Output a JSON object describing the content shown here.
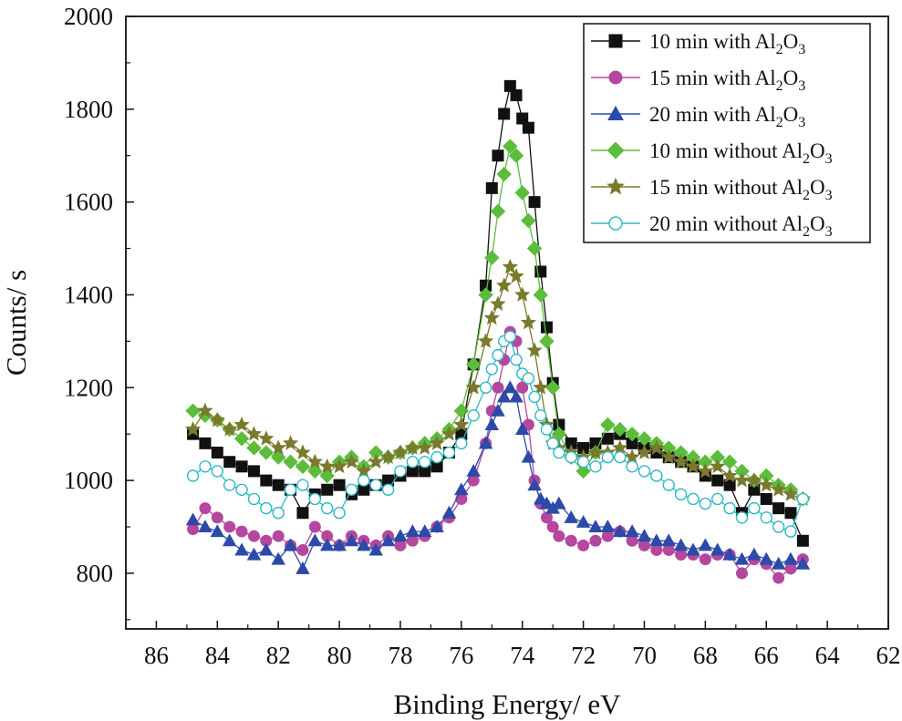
{
  "chart_data": {
    "type": "scatter",
    "xlabel": "Binding Energy/ eV",
    "ylabel": "Counts/ s",
    "xlim": [
      87,
      62
    ],
    "ylim": [
      680,
      2000
    ],
    "x_ticks": [
      86,
      84,
      82,
      80,
      78,
      76,
      74,
      72,
      70,
      68,
      66,
      64,
      62
    ],
    "y_ticks": [
      800,
      1000,
      1200,
      1400,
      1600,
      1800,
      2000
    ],
    "legend_position": "top-right",
    "series": [
      {
        "name": "10 min with Al",
        "sub": "2",
        "tail": "O",
        "sub2": "3",
        "color": "#111111",
        "marker": "square",
        "filled": true,
        "x": [
          84.8,
          84.4,
          84.0,
          83.6,
          83.2,
          82.8,
          82.4,
          82.0,
          81.6,
          81.2,
          80.8,
          80.4,
          80.0,
          79.6,
          79.2,
          78.8,
          78.4,
          78.0,
          77.6,
          77.2,
          76.8,
          76.4,
          76.0,
          75.6,
          75.2,
          75.0,
          74.8,
          74.6,
          74.4,
          74.2,
          74.0,
          73.8,
          73.6,
          73.4,
          73.2,
          73.0,
          72.8,
          72.4,
          72.0,
          71.6,
          71.2,
          70.8,
          70.4,
          70.0,
          69.6,
          69.2,
          68.8,
          68.4,
          68.0,
          67.6,
          67.2,
          66.8,
          66.4,
          66.0,
          65.6,
          65.2,
          64.8
        ],
        "y": [
          1100,
          1080,
          1060,
          1040,
          1030,
          1020,
          1000,
          990,
          980,
          930,
          970,
          980,
          990,
          970,
          980,
          990,
          1000,
          1010,
          1020,
          1020,
          1030,
          1060,
          1100,
          1250,
          1420,
          1630,
          1700,
          1790,
          1850,
          1830,
          1780,
          1760,
          1600,
          1450,
          1330,
          1210,
          1120,
          1080,
          1070,
          1080,
          1090,
          1100,
          1080,
          1070,
          1060,
          1050,
          1040,
          1030,
          1010,
          1000,
          990,
          930,
          980,
          960,
          940,
          930,
          870
        ]
      },
      {
        "name": "15 min with Al",
        "sub": "2",
        "tail": "O",
        "sub2": "3",
        "color": "#b5479e",
        "marker": "circle",
        "filled": true,
        "x": [
          84.8,
          84.4,
          84.0,
          83.6,
          83.2,
          82.8,
          82.4,
          82.0,
          81.6,
          81.2,
          80.8,
          80.4,
          80.0,
          79.6,
          79.2,
          78.8,
          78.4,
          78.0,
          77.6,
          77.2,
          76.8,
          76.4,
          76.0,
          75.6,
          75.2,
          75.0,
          74.8,
          74.6,
          74.4,
          74.2,
          74.0,
          73.8,
          73.6,
          73.4,
          73.2,
          73.0,
          72.8,
          72.4,
          72.0,
          71.6,
          71.2,
          70.8,
          70.4,
          70.0,
          69.6,
          69.2,
          68.8,
          68.4,
          68.0,
          67.6,
          67.2,
          66.8,
          66.4,
          66.0,
          65.6,
          65.2,
          64.8
        ],
        "y": [
          895,
          940,
          920,
          900,
          890,
          880,
          870,
          880,
          860,
          850,
          900,
          880,
          860,
          880,
          870,
          860,
          880,
          860,
          870,
          880,
          900,
          920,
          960,
          1000,
          1080,
          1150,
          1200,
          1260,
          1320,
          1300,
          1200,
          1120,
          1000,
          950,
          920,
          900,
          880,
          870,
          860,
          870,
          880,
          890,
          870,
          860,
          850,
          850,
          840,
          840,
          830,
          840,
          840,
          800,
          830,
          820,
          790,
          810,
          830
        ]
      },
      {
        "name": "20 min with Al",
        "sub": "2",
        "tail": "O",
        "sub2": "3",
        "color": "#2d4aa8",
        "marker": "triangle",
        "filled": true,
        "x": [
          84.8,
          84.4,
          84.0,
          83.6,
          83.2,
          82.8,
          82.4,
          82.0,
          81.6,
          81.2,
          80.8,
          80.4,
          80.0,
          79.6,
          79.2,
          78.8,
          78.4,
          78.0,
          77.6,
          77.2,
          76.8,
          76.4,
          76.0,
          75.6,
          75.2,
          75.0,
          74.8,
          74.6,
          74.4,
          74.2,
          74.0,
          73.8,
          73.6,
          73.4,
          73.2,
          73.0,
          72.8,
          72.4,
          72.0,
          71.6,
          71.2,
          70.8,
          70.4,
          70.0,
          69.6,
          69.2,
          68.8,
          68.4,
          68.0,
          67.6,
          67.2,
          66.8,
          66.4,
          66.0,
          65.6,
          65.2,
          64.8
        ],
        "y": [
          915,
          900,
          890,
          870,
          850,
          840,
          850,
          830,
          860,
          810,
          870,
          860,
          860,
          870,
          860,
          850,
          870,
          880,
          890,
          890,
          900,
          930,
          980,
          1020,
          1080,
          1120,
          1150,
          1180,
          1200,
          1180,
          1110,
          1050,
          990,
          960,
          950,
          940,
          950,
          920,
          910,
          900,
          900,
          890,
          890,
          880,
          870,
          870,
          860,
          850,
          860,
          850,
          840,
          830,
          840,
          830,
          820,
          830,
          820
        ]
      },
      {
        "name": "10 min without Al",
        "sub": "2",
        "tail": "O",
        "sub2": "3",
        "color": "#5bbd3a",
        "marker": "diamond",
        "filled": true,
        "x": [
          84.8,
          84.4,
          84.0,
          83.6,
          83.2,
          82.8,
          82.4,
          82.0,
          81.6,
          81.2,
          80.8,
          80.4,
          80.0,
          79.6,
          79.2,
          78.8,
          78.4,
          78.0,
          77.6,
          77.2,
          76.8,
          76.4,
          76.0,
          75.6,
          75.2,
          75.0,
          74.8,
          74.6,
          74.4,
          74.2,
          74.0,
          73.8,
          73.6,
          73.4,
          73.2,
          73.0,
          72.8,
          72.4,
          72.0,
          71.6,
          71.2,
          70.8,
          70.4,
          70.0,
          69.6,
          69.2,
          68.8,
          68.4,
          68.0,
          67.6,
          67.2,
          66.8,
          66.4,
          66.0,
          65.6,
          65.2,
          64.8
        ],
        "y": [
          1150,
          1140,
          1130,
          1110,
          1090,
          1070,
          1060,
          1050,
          1040,
          1030,
          1020,
          1010,
          1040,
          1050,
          1030,
          1060,
          1050,
          1060,
          1070,
          1080,
          1090,
          1110,
          1150,
          1250,
          1400,
          1480,
          1580,
          1660,
          1720,
          1700,
          1620,
          1560,
          1500,
          1400,
          1300,
          1200,
          1100,
          1050,
          1020,
          1060,
          1120,
          1110,
          1100,
          1090,
          1080,
          1070,
          1060,
          1050,
          1040,
          1050,
          1040,
          1020,
          1000,
          1010,
          990,
          980,
          960
        ]
      },
      {
        "name": "15 min without Al",
        "sub": "2",
        "tail": "O",
        "sub2": "3",
        "color": "#7a7a2e",
        "marker": "star",
        "filled": true,
        "x": [
          84.8,
          84.4,
          84.0,
          83.6,
          83.2,
          82.8,
          82.4,
          82.0,
          81.6,
          81.2,
          80.8,
          80.4,
          80.0,
          79.6,
          79.2,
          78.8,
          78.4,
          78.0,
          77.6,
          77.2,
          76.8,
          76.4,
          76.0,
          75.6,
          75.2,
          75.0,
          74.8,
          74.6,
          74.4,
          74.2,
          74.0,
          73.8,
          73.6,
          73.4,
          73.2,
          73.0,
          72.8,
          72.4,
          72.0,
          71.6,
          71.2,
          70.8,
          70.4,
          70.0,
          69.6,
          69.2,
          68.8,
          68.4,
          68.0,
          67.6,
          67.2,
          66.8,
          66.4,
          66.0,
          65.6,
          65.2,
          64.8
        ],
        "y": [
          1110,
          1150,
          1130,
          1110,
          1120,
          1100,
          1090,
          1070,
          1080,
          1060,
          1040,
          1030,
          1030,
          1040,
          1020,
          1040,
          1050,
          1060,
          1070,
          1070,
          1080,
          1100,
          1120,
          1200,
          1300,
          1350,
          1380,
          1420,
          1460,
          1440,
          1400,
          1340,
          1280,
          1200,
          1120,
          1080,
          1070,
          1060,
          1050,
          1060,
          1060,
          1070,
          1050,
          1060,
          1070,
          1050,
          1040,
          1030,
          1020,
          1030,
          1010,
          1000,
          1000,
          990,
          980,
          970,
          960
        ]
      },
      {
        "name": "20 min without Al",
        "sub": "2",
        "tail": "O",
        "sub2": "3",
        "color": "#2eb8c8",
        "marker": "circle",
        "filled": false,
        "x": [
          84.8,
          84.4,
          84.0,
          83.6,
          83.2,
          82.8,
          82.4,
          82.0,
          81.6,
          81.2,
          80.8,
          80.4,
          80.0,
          79.6,
          79.2,
          78.8,
          78.4,
          78.0,
          77.6,
          77.2,
          76.8,
          76.4,
          76.0,
          75.6,
          75.2,
          75.0,
          74.8,
          74.6,
          74.4,
          74.2,
          74.0,
          73.8,
          73.6,
          73.4,
          73.2,
          73.0,
          72.8,
          72.4,
          72.0,
          71.6,
          71.2,
          70.8,
          70.4,
          70.0,
          69.6,
          69.2,
          68.8,
          68.4,
          68.0,
          67.6,
          67.2,
          66.8,
          66.4,
          66.0,
          65.6,
          65.2,
          64.8
        ],
        "y": [
          1010,
          1030,
          1020,
          990,
          980,
          960,
          940,
          930,
          980,
          990,
          960,
          940,
          930,
          980,
          1000,
          990,
          980,
          1020,
          1040,
          1040,
          1050,
          1060,
          1080,
          1140,
          1200,
          1240,
          1270,
          1300,
          1310,
          1260,
          1230,
          1220,
          1180,
          1140,
          1110,
          1080,
          1060,
          1050,
          1040,
          1030,
          1050,
          1050,
          1030,
          1020,
          1010,
          990,
          970,
          960,
          950,
          960,
          940,
          920,
          940,
          920,
          900,
          890,
          960
        ]
      }
    ]
  }
}
